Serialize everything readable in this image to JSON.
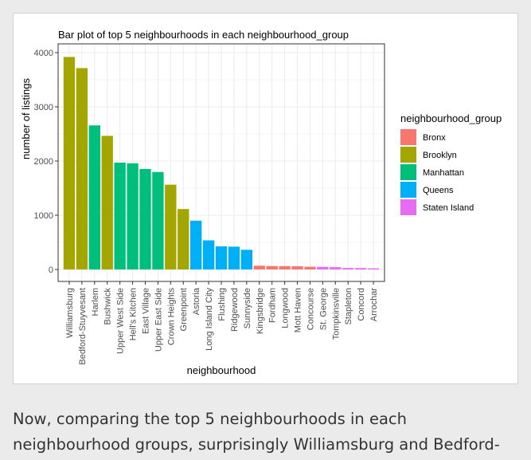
{
  "chart_data": {
    "type": "bar",
    "title": "Bar plot of top 5 neighbourhoods in each neighbourhood_group",
    "xlabel": "neighbourhood",
    "ylabel": "number of listings",
    "ylim": [
      0,
      4100
    ],
    "yticks": [
      0,
      1000,
      2000,
      3000,
      4000
    ],
    "grid": true,
    "legend_position": "right",
    "legend": {
      "title": "neighbourhood_group",
      "entries": [
        {
          "name": "Bronx",
          "color": "#F8766D"
        },
        {
          "name": "Brooklyn",
          "color": "#A3A500"
        },
        {
          "name": "Manhattan",
          "color": "#00BF7D"
        },
        {
          "name": "Queens",
          "color": "#00B0F6"
        },
        {
          "name": "Staten Island",
          "color": "#E76BF3"
        }
      ]
    },
    "categories": [
      "Williamsburg",
      "Bedford-Stuyvesant",
      "Harlem",
      "Bushwick",
      "Upper West Side",
      "Hell's Kitchen",
      "East Village",
      "Upper East Side",
      "Crown Heights",
      "Greenpoint",
      "Astoria",
      "Long Island City",
      "Flushing",
      "Ridgewood",
      "Sunnyside",
      "Kingsbridge",
      "Fordham",
      "Longwood",
      "Mott Haven",
      "Concourse",
      "St. George",
      "Tompkinsville",
      "Stapleton",
      "Concord",
      "Arrochar"
    ],
    "values": [
      3920,
      3714,
      2658,
      2465,
      1971,
      1958,
      1853,
      1798,
      1564,
      1115,
      900,
      537,
      426,
      421,
      363,
      70,
      63,
      62,
      60,
      50,
      48,
      42,
      27,
      26,
      21
    ],
    "groups": [
      "Brooklyn",
      "Brooklyn",
      "Manhattan",
      "Brooklyn",
      "Manhattan",
      "Manhattan",
      "Manhattan",
      "Manhattan",
      "Brooklyn",
      "Brooklyn",
      "Queens",
      "Queens",
      "Queens",
      "Queens",
      "Queens",
      "Bronx",
      "Bronx",
      "Bronx",
      "Bronx",
      "Bronx",
      "Staten Island",
      "Staten Island",
      "Staten Island",
      "Staten Island",
      "Staten Island"
    ]
  },
  "caption": {
    "text": "Now, comparing the top 5 neighbourhoods in each\nneighbourhood groups, surprisingly Williamsburg and Bedford-"
  }
}
